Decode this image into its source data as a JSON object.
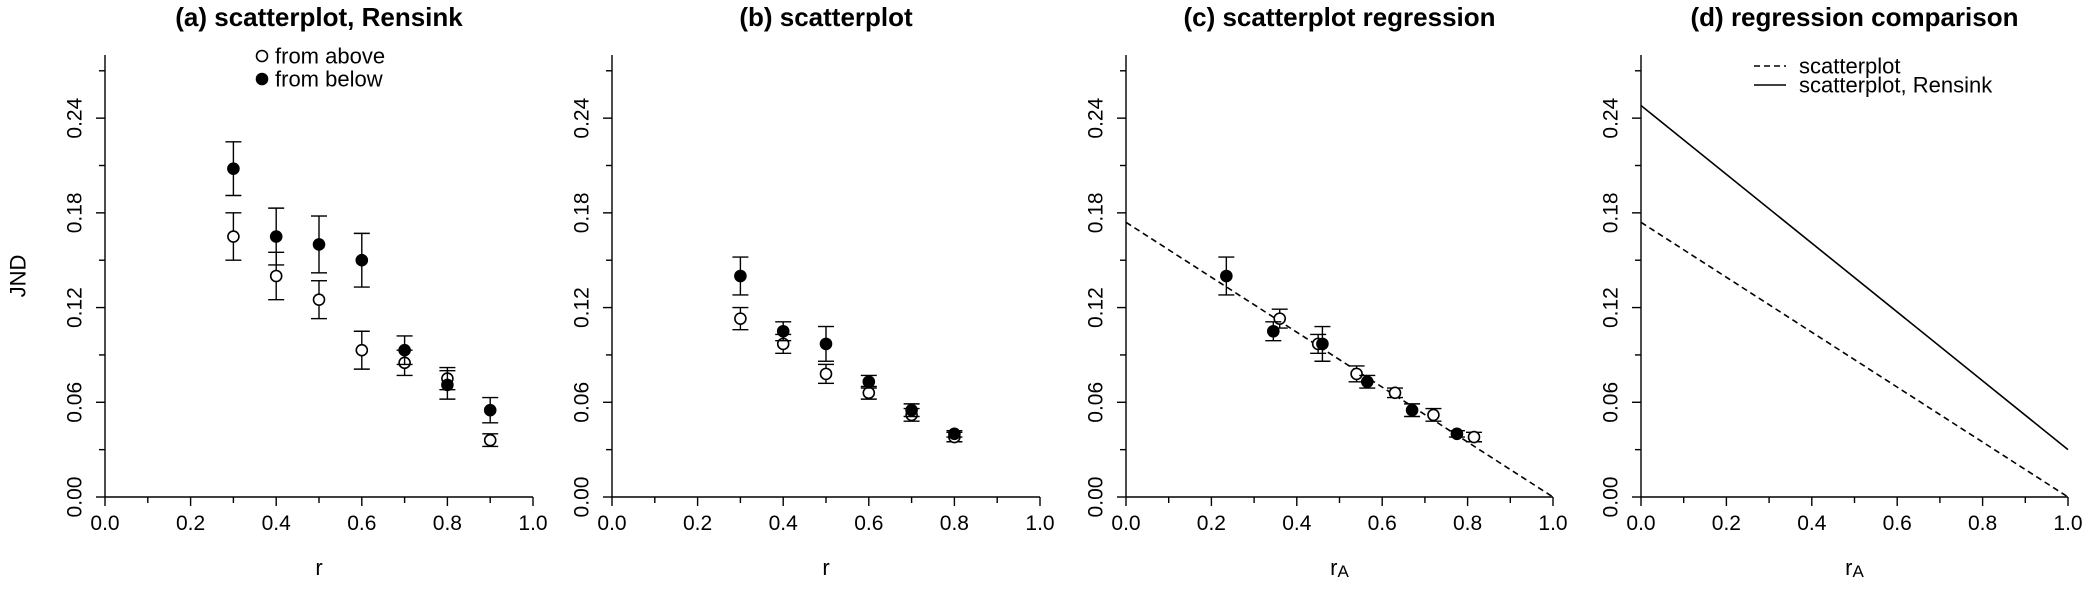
{
  "chart_data": [
    {
      "type": "scatter",
      "title": "(a) scatterplot, Rensink",
      "xlabel": "r",
      "ylabel": "JND",
      "xlim": [
        0.0,
        1.0
      ],
      "ylim": [
        0.0,
        0.28
      ],
      "x_ticks": [
        "0.0",
        "0.2",
        "0.4",
        "0.6",
        "0.8",
        "1.0"
      ],
      "y_ticks": [
        "0.00",
        "0.06",
        "0.12",
        "0.18",
        "0.24"
      ],
      "legend": {
        "position": "top",
        "entries": [
          "from above",
          "from below"
        ]
      },
      "series": [
        {
          "name": "from above",
          "marker": "open",
          "x": [
            0.3,
            0.4,
            0.5,
            0.6,
            0.7,
            0.8,
            0.9
          ],
          "y": [
            0.165,
            0.14,
            0.125,
            0.093,
            0.085,
            0.075,
            0.036
          ],
          "err": [
            0.015,
            0.015,
            0.012,
            0.012,
            0.008,
            0.007,
            0.004
          ]
        },
        {
          "name": "from below",
          "marker": "filled",
          "x": [
            0.3,
            0.4,
            0.5,
            0.6,
            0.7,
            0.8,
            0.9
          ],
          "y": [
            0.208,
            0.165,
            0.16,
            0.15,
            0.093,
            0.071,
            0.055
          ],
          "err": [
            0.017,
            0.018,
            0.018,
            0.017,
            0.009,
            0.009,
            0.008
          ]
        }
      ]
    },
    {
      "type": "scatter",
      "title": "(b) scatterplot",
      "xlabel": "r",
      "ylabel": "",
      "xlim": [
        0.0,
        1.0
      ],
      "ylim": [
        0.0,
        0.28
      ],
      "x_ticks": [
        "0.0",
        "0.2",
        "0.4",
        "0.6",
        "0.8",
        "1.0"
      ],
      "y_ticks": [
        "0.00",
        "0.06",
        "0.12",
        "0.18",
        "0.24"
      ],
      "series": [
        {
          "name": "from above",
          "marker": "open",
          "x": [
            0.3,
            0.4,
            0.5,
            0.6,
            0.7,
            0.8
          ],
          "y": [
            0.113,
            0.097,
            0.078,
            0.066,
            0.052,
            0.038
          ],
          "err": [
            0.007,
            0.006,
            0.006,
            0.004,
            0.004,
            0.003
          ]
        },
        {
          "name": "from below",
          "marker": "filled",
          "x": [
            0.3,
            0.4,
            0.5,
            0.6,
            0.7,
            0.8
          ],
          "y": [
            0.14,
            0.105,
            0.097,
            0.073,
            0.055,
            0.04
          ],
          "err": [
            0.012,
            0.006,
            0.011,
            0.004,
            0.004,
            0.002
          ]
        }
      ]
    },
    {
      "type": "scatter",
      "title": "(c) scatterplot regression",
      "xlabel": "rA",
      "ylabel": "",
      "xlim": [
        0.0,
        1.0
      ],
      "ylim": [
        0.0,
        0.28
      ],
      "x_ticks": [
        "0.0",
        "0.2",
        "0.4",
        "0.6",
        "0.8",
        "1.0"
      ],
      "y_ticks": [
        "0.00",
        "0.06",
        "0.12",
        "0.18",
        "0.24"
      ],
      "series": [
        {
          "name": "from above",
          "marker": "open",
          "x": [
            0.36,
            0.45,
            0.54,
            0.63,
            0.72,
            0.815
          ],
          "y": [
            0.113,
            0.097,
            0.078,
            0.066,
            0.052,
            0.038
          ],
          "err": [
            0.006,
            0.006,
            0.005,
            0.003,
            0.004,
            0.003
          ]
        },
        {
          "name": "from below",
          "marker": "filled",
          "x": [
            0.235,
            0.345,
            0.46,
            0.565,
            0.67,
            0.775
          ],
          "y": [
            0.14,
            0.105,
            0.097,
            0.073,
            0.055,
            0.04
          ],
          "err": [
            0.012,
            0.006,
            0.011,
            0.004,
            0.004,
            0.002
          ]
        }
      ],
      "lines": [
        {
          "name": "scatterplot",
          "style": "dashed",
          "intercept": 0.174,
          "slope": -0.174
        }
      ]
    },
    {
      "type": "line",
      "title": "(d) regression comparison",
      "xlabel": "rA",
      "ylabel": "",
      "xlim": [
        0.0,
        1.0
      ],
      "ylim": [
        0.0,
        0.28
      ],
      "x_ticks": [
        "0.0",
        "0.2",
        "0.4",
        "0.6",
        "0.8",
        "1.0"
      ],
      "y_ticks": [
        "0.00",
        "0.06",
        "0.12",
        "0.18",
        "0.24"
      ],
      "legend": {
        "position": "top",
        "entries": [
          "scatterplot",
          "scatterplot, Rensink"
        ]
      },
      "lines": [
        {
          "name": "scatterplot",
          "style": "dashed",
          "intercept": 0.174,
          "slope": -0.174
        },
        {
          "name": "scatterplot, Rensink",
          "style": "solid",
          "intercept": 0.248,
          "slope": -0.218
        }
      ]
    }
  ]
}
